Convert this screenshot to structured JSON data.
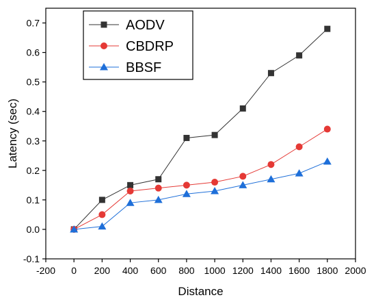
{
  "chart_data": {
    "type": "line",
    "xlabel": "Distance",
    "ylabel": "Latency (sec)",
    "xlim": [
      -200,
      2000
    ],
    "ylim": [
      -0.1,
      0.75
    ],
    "xticks": [
      -200,
      0,
      200,
      400,
      600,
      800,
      1000,
      1200,
      1400,
      1600,
      1800,
      2000
    ],
    "yticks": [
      -0.1,
      0.0,
      0.1,
      0.2,
      0.3,
      0.4,
      0.5,
      0.6,
      0.7
    ],
    "x": [
      0,
      200,
      400,
      600,
      800,
      1000,
      1200,
      1400,
      1600,
      1800
    ],
    "grid": false,
    "legend": "top-left",
    "series": [
      {
        "name": "AODV",
        "color": "#333333",
        "marker": "square",
        "values": [
          0.0,
          0.1,
          0.15,
          0.17,
          0.31,
          0.32,
          0.41,
          0.53,
          0.59,
          0.68
        ]
      },
      {
        "name": "CBDRP",
        "color": "#e53935",
        "marker": "circle",
        "values": [
          0.0,
          0.05,
          0.13,
          0.14,
          0.15,
          0.16,
          0.18,
          0.22,
          0.28,
          0.34
        ]
      },
      {
        "name": "BBSF",
        "color": "#1e6fd9",
        "marker": "triangle",
        "values": [
          0.0,
          0.01,
          0.09,
          0.1,
          0.12,
          0.13,
          0.15,
          0.17,
          0.19,
          0.23
        ]
      }
    ]
  }
}
